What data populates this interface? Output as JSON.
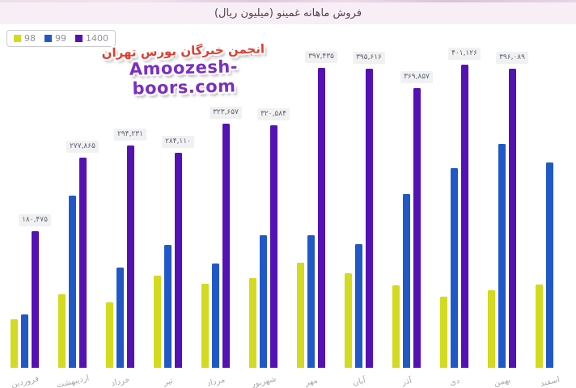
{
  "header": {
    "title": "فروش ماهانه غمینو (میلیون ریال)"
  },
  "legend": {
    "items": [
      {
        "label": "98",
        "color": "#d2db1f"
      },
      {
        "label": "99",
        "color": "#2158c8"
      },
      {
        "label": "1400",
        "color": "#5411b4"
      }
    ]
  },
  "watermark": {
    "line1": "انجمن خبرگان بورس تهران",
    "line2": "Amoozesh-boors.com",
    "line1_color": "#e23c2e",
    "line2_color": "#7b2fbe"
  },
  "chart_data": {
    "type": "bar",
    "title": "فروش ماهانه غمینو (میلیون ریال)",
    "categories": [
      "فروردین",
      "اردیبهشت",
      "خرداد",
      "تیر",
      "مرداد",
      "شهریور",
      "مهر",
      "آبان",
      "آذر",
      "دی",
      "بهمن",
      "اسفند"
    ],
    "series": [
      {
        "name": "98",
        "color": "#d2db1f",
        "values": [
          64000,
          97000,
          87000,
          122000,
          111000,
          119000,
          139000,
          125000,
          109000,
          94000,
          103000,
          110000
        ]
      },
      {
        "name": "99",
        "color": "#2158c8",
        "values": [
          71000,
          228000,
          133000,
          163000,
          138000,
          175000,
          175000,
          164000,
          230000,
          264000,
          296000,
          272000
        ]
      },
      {
        "name": "1400",
        "color": "#5411b4",
        "values": [
          180475,
          277865,
          294231,
          284110,
          323657,
          320584,
          397435,
          395616,
          369857,
          401126,
          396089,
          null
        ]
      }
    ],
    "value_labels": [
      "۱۸۰,۴۷۵",
      "۲۷۷,۸۶۵",
      "۲۹۴,۲۳۱",
      "۲۸۴,۱۱۰",
      "۳۲۳,۶۵۷",
      "۳۲۰,۵۸۴",
      "۳۹۷,۴۳۵",
      "۳۹۵,۶۱۶",
      "۳۶۹,۸۵۷",
      "۴۰۱,۱۲۶",
      "۳۹۶,۰۸۹",
      null
    ],
    "ylim": [
      0,
      420000
    ],
    "grid": false,
    "legend_position": "top-left",
    "note": "value labels shown only for series 1400"
  }
}
